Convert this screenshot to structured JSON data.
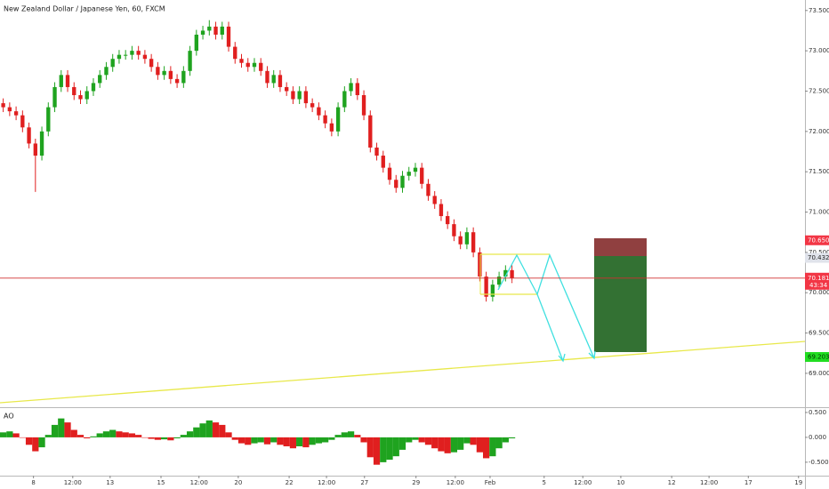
{
  "chart_data": {
    "type": "candlestick",
    "title": "New Zealand Dollar / Japanese Yen, 60, FXCM",
    "up_color": "#1fa31f",
    "down_color": "#e01f1f",
    "xlim": [
      0,
      125
    ],
    "xticks": [
      {
        "value": 5.2,
        "label": "8"
      },
      {
        "value": 11.3,
        "label": "12:00"
      },
      {
        "value": 17.1,
        "label": "13"
      },
      {
        "value": 25,
        "label": "15"
      },
      {
        "value": 30.9,
        "label": "12:00"
      },
      {
        "value": 37,
        "label": "20"
      },
      {
        "value": 44.9,
        "label": "22"
      },
      {
        "value": 50.7,
        "label": "12:00"
      },
      {
        "value": 56.6,
        "label": "27"
      },
      {
        "value": 64.6,
        "label": "29"
      },
      {
        "value": 70.7,
        "label": "12:00"
      },
      {
        "value": 76.1,
        "label": "Feb"
      },
      {
        "value": 84.5,
        "label": "5"
      },
      {
        "value": 90.5,
        "label": "12:00"
      },
      {
        "value": 96.4,
        "label": "10"
      },
      {
        "value": 104.3,
        "label": "12"
      },
      {
        "value": 110.1,
        "label": "12:00"
      },
      {
        "value": 116.2,
        "label": "17"
      },
      {
        "value": 124,
        "label": "19"
      }
    ],
    "ylim": [
      68.58,
      73.63
    ],
    "yticks": [
      {
        "value": 73.5,
        "label": "73.500"
      },
      {
        "value": 73,
        "label": "73.000"
      },
      {
        "value": 72.5,
        "label": "72.500"
      },
      {
        "value": 72,
        "label": "72.000"
      },
      {
        "value": 71.5,
        "label": "71.500"
      },
      {
        "value": 71,
        "label": "71.000"
      },
      {
        "value": 70.5,
        "label": "70.500"
      },
      {
        "value": 70,
        "label": "70.000"
      },
      {
        "value": 69.5,
        "label": "69.500"
      },
      {
        "value": 69,
        "label": "69.000"
      }
    ],
    "open": [
      72.35,
      72.3,
      72.25,
      72.2,
      72.05,
      71.85,
      71.7,
      72.0,
      72.3,
      72.55,
      72.7,
      72.55,
      72.45,
      72.4,
      72.5,
      72.6,
      72.7,
      72.8,
      72.9,
      72.95,
      72.95,
      73.0,
      72.95,
      72.9,
      72.8,
      72.7,
      72.75,
      72.65,
      72.6,
      72.75,
      73.0,
      73.2,
      73.25,
      73.3,
      73.2,
      73.3,
      73.05,
      72.9,
      72.85,
      72.8,
      72.85,
      72.75,
      72.6,
      72.7,
      72.55,
      72.5,
      72.4,
      72.5,
      72.35,
      72.3,
      72.2,
      72.1,
      72.0,
      72.3,
      72.5,
      72.6,
      72.45,
      72.2,
      71.8,
      71.7,
      71.55,
      71.4,
      71.3,
      71.45,
      71.5,
      71.55,
      71.35,
      71.2,
      71.1,
      70.95,
      70.85,
      70.7,
      70.6,
      70.75,
      70.5,
      70.2,
      69.95,
      70.1,
      70.2,
      70.28
    ],
    "high": [
      72.41,
      72.36,
      72.31,
      72.26,
      72.11,
      71.91,
      72.06,
      72.36,
      72.61,
      72.76,
      72.76,
      72.61,
      72.51,
      72.56,
      72.66,
      72.76,
      72.86,
      72.96,
      73.01,
      73.01,
      73.06,
      73.06,
      73.01,
      72.96,
      72.86,
      72.81,
      72.81,
      72.71,
      72.81,
      73.06,
      73.26,
      73.31,
      73.38,
      73.36,
      73.36,
      73.36,
      73.11,
      72.96,
      72.91,
      72.91,
      72.91,
      72.81,
      72.76,
      72.76,
      72.61,
      72.56,
      72.56,
      72.56,
      72.41,
      72.36,
      72.26,
      72.16,
      72.36,
      72.56,
      72.66,
      72.66,
      72.51,
      72.26,
      71.86,
      71.76,
      71.61,
      71.46,
      71.51,
      71.56,
      71.61,
      71.61,
      71.41,
      71.26,
      71.16,
      71.01,
      70.91,
      70.76,
      70.81,
      70.81,
      70.56,
      70.26,
      70.16,
      70.26,
      70.34,
      70.34
    ],
    "low": [
      72.24,
      72.19,
      72.14,
      71.99,
      71.79,
      71.25,
      71.64,
      71.94,
      72.24,
      72.49,
      72.49,
      72.39,
      72.34,
      72.34,
      72.44,
      72.54,
      72.64,
      72.74,
      72.84,
      72.89,
      72.89,
      72.89,
      72.84,
      72.74,
      72.64,
      72.64,
      72.59,
      72.54,
      72.54,
      72.69,
      72.94,
      73.14,
      73.19,
      73.14,
      73.14,
      72.99,
      72.84,
      72.79,
      72.74,
      72.74,
      72.69,
      72.54,
      72.54,
      72.49,
      72.44,
      72.34,
      72.34,
      72.29,
      72.24,
      72.14,
      72.04,
      71.94,
      71.94,
      72.24,
      72.44,
      72.39,
      72.14,
      71.74,
      71.64,
      71.49,
      71.34,
      71.24,
      71.24,
      71.39,
      71.44,
      71.29,
      71.14,
      71.04,
      70.89,
      70.79,
      70.64,
      70.54,
      70.54,
      70.44,
      70.14,
      69.89,
      69.89,
      70.04,
      70.14,
      70.12
    ],
    "close": [
      72.3,
      72.25,
      72.2,
      72.05,
      71.85,
      71.7,
      72.0,
      72.3,
      72.55,
      72.7,
      72.55,
      72.45,
      72.4,
      72.5,
      72.6,
      72.7,
      72.8,
      72.9,
      72.95,
      72.95,
      73.0,
      72.95,
      72.9,
      72.8,
      72.7,
      72.75,
      72.65,
      72.6,
      72.75,
      73.0,
      73.2,
      73.25,
      73.3,
      73.2,
      73.3,
      73.05,
      72.9,
      72.85,
      72.8,
      72.85,
      72.75,
      72.6,
      72.7,
      72.55,
      72.5,
      72.4,
      72.5,
      72.35,
      72.3,
      72.2,
      72.1,
      72.0,
      72.3,
      72.5,
      72.6,
      72.45,
      72.2,
      71.8,
      71.7,
      71.55,
      71.4,
      71.3,
      71.45,
      71.5,
      71.55,
      71.35,
      71.2,
      71.1,
      70.95,
      70.85,
      70.7,
      70.6,
      70.75,
      70.5,
      70.2,
      69.95,
      70.1,
      70.2,
      70.28,
      70.18
    ],
    "price_line": 70.181,
    "price_line_label": "70.181",
    "countdown": "43:34",
    "price_tags": [
      {
        "value": 70.65,
        "label": "70.650",
        "color": "#f23645"
      },
      {
        "value": 70.432,
        "label": "70.432",
        "color": "#e0e3eb"
      },
      {
        "value": 69.203,
        "label": "69.203",
        "color": "#22dd22"
      }
    ],
    "indicator": {
      "name": "AO",
      "ylim": [
        -0.77,
        0.57
      ],
      "yticks": [
        {
          "value": 0.5,
          "label": "0.500"
        },
        {
          "value": 0,
          "label": "0.000"
        },
        {
          "value": -0.5,
          "label": "-0.500"
        }
      ],
      "values": [
        0.1,
        0.12,
        0.08,
        0.0,
        -0.15,
        -0.28,
        -0.2,
        0.05,
        0.25,
        0.38,
        0.3,
        0.15,
        0.05,
        -0.02,
        0.02,
        0.08,
        0.12,
        0.15,
        0.12,
        0.1,
        0.08,
        0.05,
        0.0,
        -0.03,
        -0.05,
        -0.04,
        -0.06,
        -0.02,
        0.05,
        0.12,
        0.2,
        0.28,
        0.34,
        0.3,
        0.25,
        0.1,
        -0.05,
        -0.12,
        -0.15,
        -0.12,
        -0.1,
        -0.14,
        -0.1,
        -0.15,
        -0.18,
        -0.22,
        -0.18,
        -0.2,
        -0.15,
        -0.12,
        -0.1,
        -0.05,
        0.05,
        0.1,
        0.12,
        0.05,
        -0.1,
        -0.4,
        -0.55,
        -0.5,
        -0.45,
        -0.38,
        -0.25,
        -0.1,
        -0.05,
        -0.1,
        -0.15,
        -0.22,
        -0.28,
        -0.32,
        -0.3,
        -0.25,
        -0.12,
        -0.15,
        -0.3,
        -0.42,
        -0.38,
        -0.22,
        -0.1,
        -0.02
      ]
    }
  }
}
